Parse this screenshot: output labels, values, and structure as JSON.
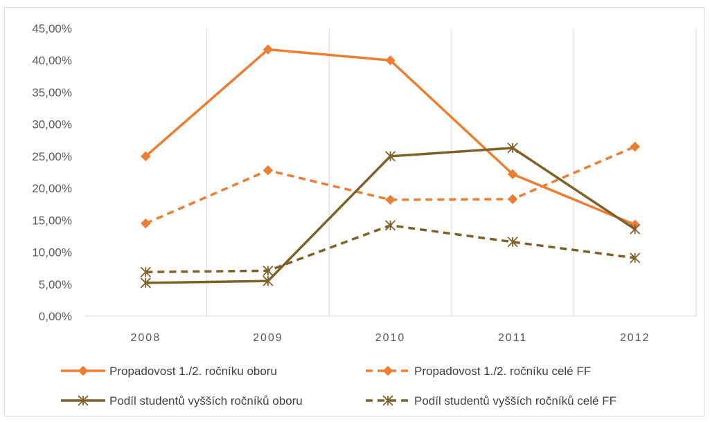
{
  "chart_data": {
    "type": "line",
    "categories": [
      "2008",
      "2009",
      "2010",
      "2011",
      "2012"
    ],
    "ylim": [
      0,
      45
    ],
    "y_step": 5,
    "y_tick_labels": [
      "0,00%",
      "5,00%",
      "10,00%",
      "15,00%",
      "20,00%",
      "25,00%",
      "30,00%",
      "35,00%",
      "40,00%",
      "45,00%"
    ],
    "grid": "vertical",
    "legend_position": "bottom",
    "series": [
      {
        "name": "Propadovost 1./2. ročníku oboru",
        "values": [
          25.0,
          41.7,
          40.0,
          22.2,
          14.3
        ],
        "color": "#ED7D31",
        "dash": "solid",
        "marker": "diamond"
      },
      {
        "name": "Propadovost 1./2. ročníku celé FF",
        "values": [
          14.5,
          22.8,
          18.2,
          18.3,
          26.5
        ],
        "color": "#ED7D31",
        "dash": "dashed",
        "marker": "diamond"
      },
      {
        "name": "Podíl studentů vyšších ročníků oboru",
        "values": [
          5.2,
          5.5,
          25.0,
          26.3,
          13.6
        ],
        "color": "#7F6128",
        "dash": "solid",
        "marker": "star"
      },
      {
        "name": "Podíl studentů vyšších ročníků celé FF",
        "values": [
          6.9,
          7.1,
          14.2,
          11.6,
          9.1
        ],
        "color": "#7F6128",
        "dash": "dashed",
        "marker": "star"
      }
    ]
  }
}
